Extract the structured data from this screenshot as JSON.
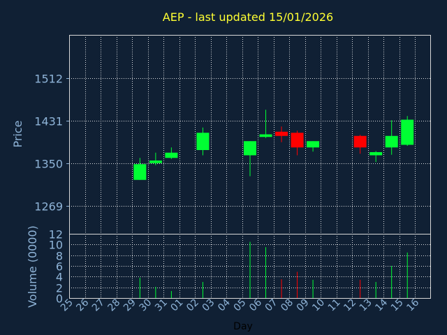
{
  "colors": {
    "background": "#102034",
    "title": "#ffff33",
    "axis_text": "#8fb4d8",
    "day_label": "#000000",
    "grid": "#ffffff",
    "up": "#00ff33",
    "down": "#ff0000"
  },
  "chart_data": {
    "type": "candlestick",
    "title": "AEP - last updated 15/01/2026",
    "xlabel": "Day",
    "ylabel": "Price",
    "volume_label": "Volume (0000)",
    "grid": true,
    "days": [
      "25",
      "26",
      "27",
      "28",
      "29",
      "30",
      "31",
      "01",
      "02",
      "03",
      "04",
      "05",
      "06",
      "07",
      "08",
      "09",
      "10",
      "11",
      "12",
      "13",
      "14",
      "15",
      "16"
    ],
    "price_ticks": [
      1269,
      1350,
      1431,
      1512
    ],
    "price_ylim": [
      1215,
      1595
    ],
    "volume_ticks": [
      0,
      2,
      4,
      6,
      8,
      10,
      12
    ],
    "volume_ylim": [
      0,
      12
    ],
    "candles": [
      {
        "day": "29",
        "open": 1318,
        "high": 1360,
        "low": 1318,
        "close": 1348,
        "volume": 3.8
      },
      {
        "day": "30",
        "open": 1350,
        "high": 1370,
        "low": 1346,
        "close": 1355,
        "volume": 2.1
      },
      {
        "day": "31",
        "open": 1360,
        "high": 1380,
        "low": 1358,
        "close": 1370,
        "volume": 1.3
      },
      {
        "day": "02",
        "open": 1375,
        "high": 1418,
        "low": 1365,
        "close": 1408,
        "volume": 3.0
      },
      {
        "day": "05",
        "open": 1365,
        "high": 1392,
        "low": 1325,
        "close": 1392,
        "volume": 10.5
      },
      {
        "day": "06",
        "open": 1400,
        "high": 1452,
        "low": 1398,
        "close": 1405,
        "volume": 9.5
      },
      {
        "day": "07",
        "open": 1410,
        "high": 1420,
        "low": 1390,
        "close": 1402,
        "volume": 3.5
      },
      {
        "day": "08",
        "open": 1408,
        "high": 1412,
        "low": 1365,
        "close": 1380,
        "volume": 4.9
      },
      {
        "day": "09",
        "open": 1380,
        "high": 1392,
        "low": 1372,
        "close": 1392,
        "volume": 3.4
      },
      {
        "day": "12",
        "open": 1402,
        "high": 1404,
        "low": 1368,
        "close": 1380,
        "volume": 3.4
      },
      {
        "day": "13",
        "open": 1365,
        "high": 1373,
        "low": 1352,
        "close": 1371,
        "volume": 3.0
      },
      {
        "day": "14",
        "open": 1380,
        "high": 1432,
        "low": 1366,
        "close": 1402,
        "volume": 6.0
      },
      {
        "day": "15",
        "open": 1385,
        "high": 1440,
        "low": 1383,
        "close": 1433,
        "volume": 8.5
      }
    ]
  }
}
